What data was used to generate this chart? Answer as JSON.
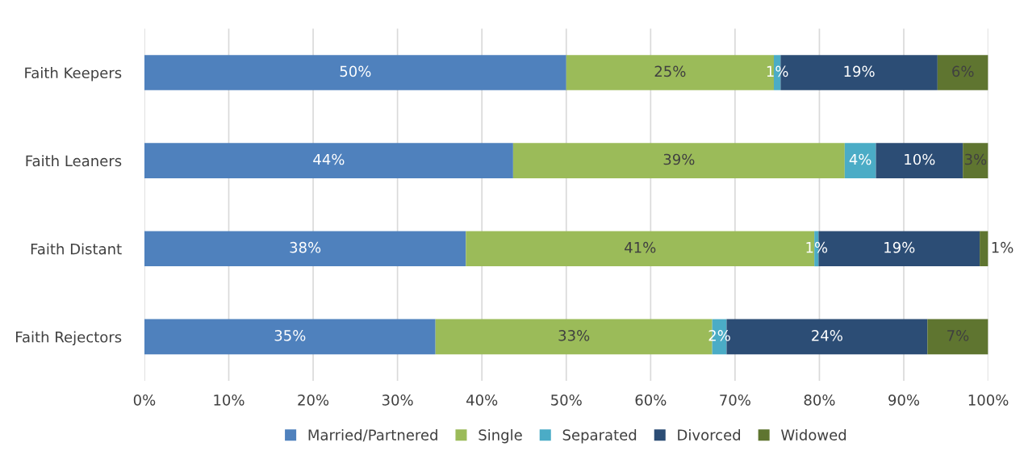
{
  "chart_data": {
    "type": "bar",
    "orientation": "horizontal",
    "stacked": true,
    "categories": [
      "Faith Keepers",
      "Faith Leaners",
      "Faith Distant",
      "Faith Rejectors"
    ],
    "series": [
      {
        "name": "Married/Partnered",
        "color": "#4f81bd",
        "values": [
          50.0,
          43.7,
          38.1,
          34.5
        ],
        "value_labels": [
          "50%",
          "44%",
          "38%",
          "35%"
        ]
      },
      {
        "name": "Single",
        "color": "#9bbb59",
        "values": [
          24.6,
          39.3,
          41.3,
          32.8
        ],
        "value_labels": [
          "25%",
          "39%",
          "41%",
          "33%"
        ]
      },
      {
        "name": "Separated",
        "color": "#4bacc6",
        "values": [
          0.8,
          3.7,
          0.5,
          1.7
        ],
        "value_labels": [
          "1%",
          "4%",
          "1%",
          "2%"
        ]
      },
      {
        "name": "Divorced",
        "color": "#2c4d75",
        "values": [
          18.6,
          10.3,
          19.1,
          23.8
        ],
        "value_labels": [
          "19%",
          "10%",
          "19%",
          "24%"
        ]
      },
      {
        "name": "Widowed",
        "color": "#5f7530",
        "values": [
          6.0,
          3.0,
          1.0,
          7.2
        ],
        "value_labels": [
          "6%",
          "3%",
          "1%",
          "7%"
        ]
      }
    ],
    "xlim": [
      0,
      100
    ],
    "xticks": [
      {
        "value": 0,
        "label": "0%"
      },
      {
        "value": 10,
        "label": "10%"
      },
      {
        "value": 20,
        "label": "20%"
      },
      {
        "value": 30,
        "label": "30%"
      },
      {
        "value": 40,
        "label": "40%"
      },
      {
        "value": 50,
        "label": "50%"
      },
      {
        "value": 60,
        "label": "60%"
      },
      {
        "value": 70,
        "label": "70%"
      },
      {
        "value": 80,
        "label": "80%"
      },
      {
        "value": 90,
        "label": "90%"
      },
      {
        "value": 100,
        "label": "100%"
      }
    ],
    "grid": "x",
    "legend": "bottom"
  }
}
